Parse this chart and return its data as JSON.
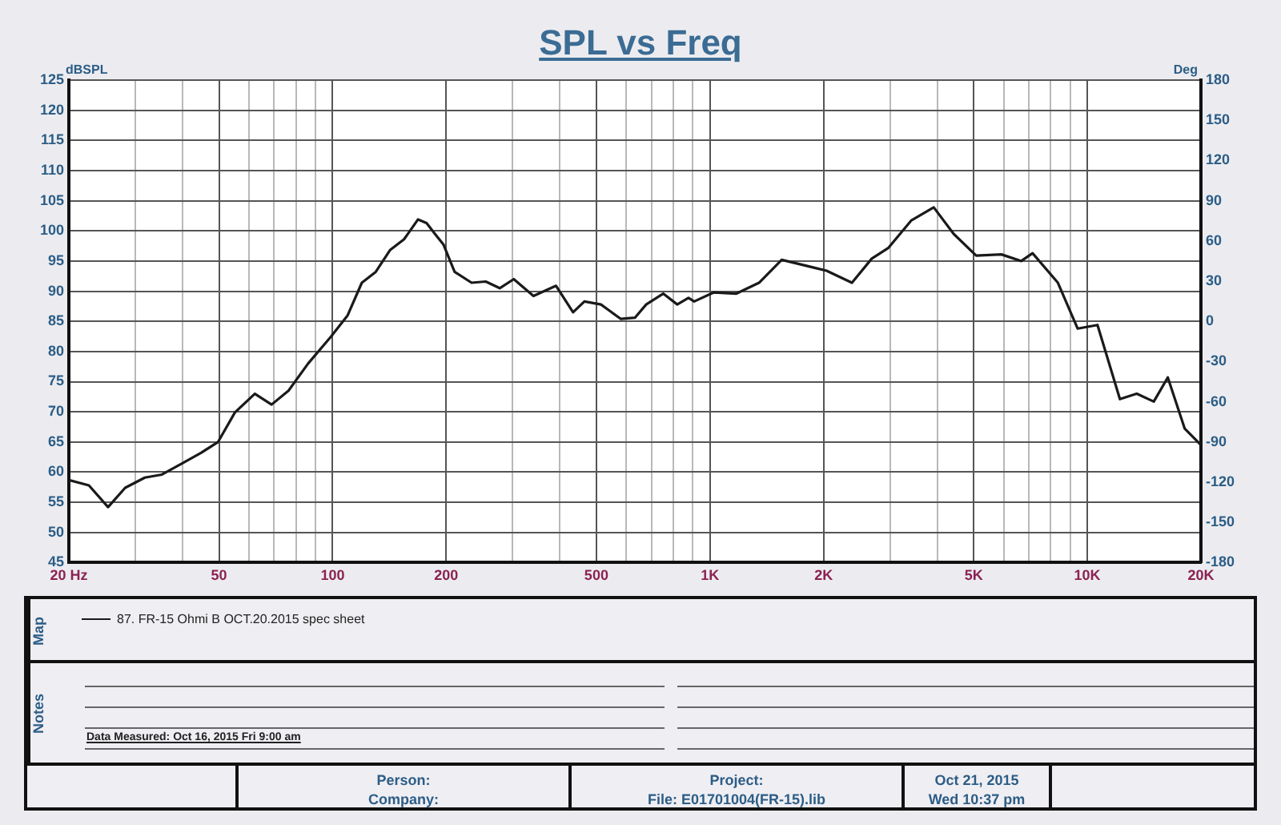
{
  "chart_data": {
    "type": "line",
    "title": "SPL vs Freq",
    "ylabel": "dBSPL",
    "y2label": "Deg",
    "log": "x",
    "grid": true,
    "legend": "bottom",
    "marker": "none",
    "line_style": "solid",
    "xlim": [
      20,
      20000
    ],
    "ylim": [
      45,
      125
    ],
    "y2lim": [
      -180,
      180
    ],
    "xticks": [
      {
        "value": 20,
        "label": "20 Hz"
      },
      {
        "value": 30,
        "label": null
      },
      {
        "value": 40,
        "label": null
      },
      50,
      {
        "value": 60,
        "label": null
      },
      {
        "value": 70,
        "label": null
      },
      {
        "value": 80,
        "label": null
      },
      {
        "value": 90,
        "label": null
      },
      100,
      200,
      {
        "value": 300,
        "label": null
      },
      {
        "value": 400,
        "label": null
      },
      500,
      {
        "value": 600,
        "label": null
      },
      {
        "value": 700,
        "label": null
      },
      {
        "value": 800,
        "label": null
      },
      {
        "value": 900,
        "label": null
      },
      {
        "value": 1000,
        "label": "1K"
      },
      {
        "value": 2000,
        "label": "2K"
      },
      {
        "value": 3000,
        "label": null
      },
      {
        "value": 4000,
        "label": null
      },
      {
        "value": 5000,
        "label": "5K"
      },
      {
        "value": 6000,
        "label": null
      },
      {
        "value": 7000,
        "label": null
      },
      {
        "value": 8000,
        "label": null
      },
      {
        "value": 9000,
        "label": null
      },
      {
        "value": 10000,
        "label": "10K"
      },
      {
        "value": 20000,
        "label": "20K"
      }
    ],
    "yticks": [
      45,
      50,
      55,
      60,
      65,
      70,
      75,
      80,
      85,
      90,
      95,
      100,
      105,
      110,
      115,
      120,
      125
    ],
    "y2ticks": [
      -180,
      -150,
      -120,
      -90,
      -60,
      -30,
      0,
      30,
      60,
      90,
      120,
      150,
      180
    ],
    "series": [
      {
        "name": "87. FR-15  Ohmi B OCT.20.2015 spec sheet",
        "color": "#1a1a1a",
        "x": [
          20,
          22.6,
          25.4,
          28.2,
          31.8,
          35.3,
          39.8,
          44.8,
          49.7,
          55.1,
          62.2,
          68.9,
          76.4,
          86.1,
          98.8,
          109.6,
          119.5,
          130.1,
          141.9,
          154.6,
          168.4,
          177.4,
          186.7,
          196.8,
          210.5,
          233.5,
          254.5,
          277.2,
          302,
          340.6,
          390.9,
          433.7,
          464.7,
          514,
          580.6,
          632.5,
          677.6,
          751.6,
          819,
          877,
          908,
          1024,
          1175,
          1349,
          1549,
          1775,
          2037,
          2378,
          2684,
          2973,
          3412,
          3917,
          4424,
          5075,
          5920,
          6682,
          7159,
          8357,
          9425,
          10640,
          12200,
          13520,
          15000,
          16340,
          18120,
          20000
        ],
        "values": [
          58.7,
          57.8,
          54.2,
          57.4,
          59.1,
          59.6,
          61.4,
          63.2,
          65.0,
          69.9,
          73.0,
          71.2,
          73.5,
          78.0,
          82.4,
          86.0,
          91.4,
          93.2,
          96.8,
          98.6,
          101.9,
          101.3,
          99.5,
          97.7,
          93.2,
          91.4,
          91.6,
          90.5,
          92.0,
          89.2,
          90.9,
          86.5,
          88.3,
          87.8,
          85.4,
          85.6,
          87.8,
          89.6,
          87.8,
          88.9,
          88.3,
          89.8,
          89.6,
          91.4,
          95.2,
          94.3,
          93.4,
          91.4,
          95.4,
          97.2,
          101.7,
          103.9,
          99.5,
          95.9,
          96.1,
          95.0,
          96.3,
          91.4,
          83.8,
          84.4,
          72.1,
          73.0,
          71.7,
          75.7,
          67.2,
          64.5
        ]
      }
    ],
    "annotations": [
      "Map",
      "Notes",
      "Data Measured: Oct 16, 2015 Fri 9:00 am",
      "Person:",
      "Company:",
      "Project:",
      "File: E01701004(FR-15).lib",
      "Oct 21, 2015",
      "Wed 10:37 pm"
    ]
  }
}
